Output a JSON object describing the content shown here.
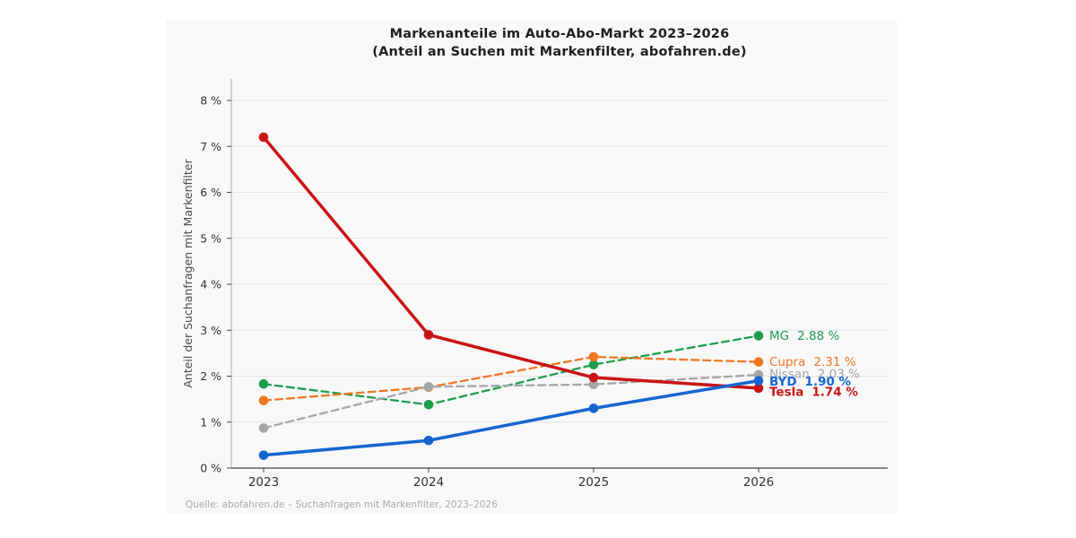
{
  "title": {
    "line1": "Markenanteile im Auto-Abo-Markt 2023–2026",
    "line2": "(Anteil an Suchen mit Markenfilter, abofahren.de)"
  },
  "source_note": "Quelle: abofahren.de – Suchanfragen mit Markenfilter, 2023–2026",
  "colors": {
    "page_background": "#ffffff",
    "card_background": "#f8f8f9",
    "grid": "#e4e4e7",
    "bottom_spine": "#444444",
    "left_spine": "#ababab",
    "tick_text": "#333333",
    "axis_label_text": "#4a4a4a",
    "title_text": "#1f1f1f",
    "source_text": "#a9a9ae"
  },
  "chart_data": {
    "type": "line",
    "x": [
      "2023",
      "2024",
      "2025",
      "2026"
    ],
    "xlabel": "",
    "ylabel": "Anteil der Suchanfragen mit Markenfilter",
    "ylim": [
      0,
      8
    ],
    "ytick_step": 1,
    "ytick_suffix": " %",
    "grid": true,
    "legend_position": "end-of-line labels, right of last data point",
    "series": [
      {
        "name": "MG",
        "values": [
          1.83,
          1.38,
          2.25,
          2.88
        ],
        "color": "#1e9e4d",
        "line_style": "dashed",
        "end_label_value": "2.88 %",
        "bold": false,
        "label_dy": 0
      },
      {
        "name": "Cupra",
        "values": [
          1.47,
          1.76,
          2.42,
          2.31
        ],
        "color": "#ee7722",
        "line_style": "dashed",
        "end_label_value": "2.31 %",
        "bold": false,
        "label_dy": 0
      },
      {
        "name": "Nissan",
        "values": [
          0.87,
          1.77,
          1.82,
          2.03
        ],
        "color": "#a5a5a5",
        "line_style": "dashed",
        "end_label_value": "2.03 %",
        "bold": false,
        "label_dy": -1
      },
      {
        "name": "Tesla",
        "values": [
          7.2,
          2.9,
          1.97,
          1.74
        ],
        "color": "#c91414",
        "line_style": "solid",
        "end_label_value": "1.74 %",
        "bold": true,
        "label_dy": 4
      },
      {
        "name": "BYD",
        "values": [
          0.28,
          0.6,
          1.3,
          1.9
        ],
        "color": "#1565d0",
        "line_style": "solid",
        "end_label_value": "1.90 %",
        "bold": true,
        "label_dy": 1
      }
    ]
  }
}
